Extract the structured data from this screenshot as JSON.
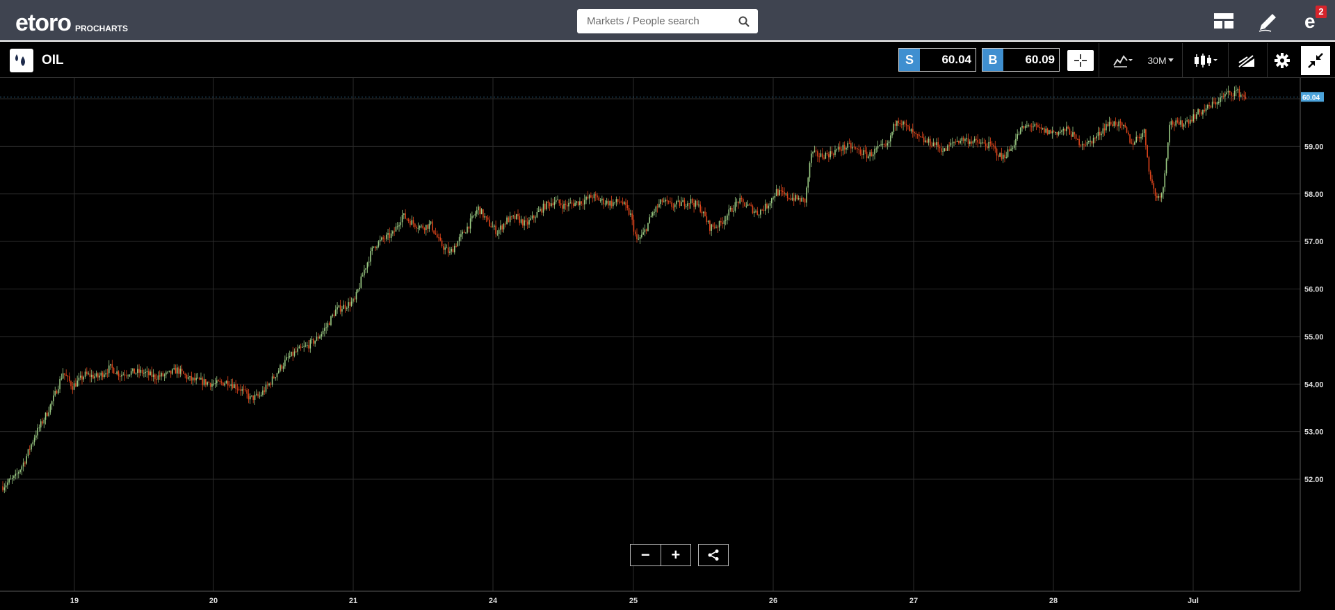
{
  "header": {
    "logo_text": "etoro",
    "logo_sub": "PROCHARTS",
    "search": {
      "placeholder": "Markets / People search"
    },
    "icons": [
      "layout-icon",
      "pencil-icon",
      "etoro-notifications-icon"
    ],
    "notification_count": "2"
  },
  "instrument": {
    "name": "OIL",
    "sell": {
      "label": "S",
      "value": "60.04"
    },
    "buy": {
      "label": "B",
      "value": "60.09"
    },
    "timeframe": "30M"
  },
  "colors": {
    "topbar": "#3f4450",
    "accent": "#3f8fd0",
    "up_candle": "#9ccc85",
    "down_candle": "#e0451b",
    "grid": "#2b2b2b",
    "price_tag": "#4ba3db"
  },
  "controls": {
    "zoom_out": "−",
    "zoom_in": "+"
  },
  "chart_data": {
    "type": "candlestick",
    "symbol": "OIL",
    "interval": "30M",
    "current_price": "60.04",
    "y_ticks": [
      "59.00",
      "58.00",
      "57.00",
      "56.00",
      "55.00",
      "54.00",
      "53.00",
      "52.00"
    ],
    "x_ticks": [
      "19",
      "20",
      "21",
      "24",
      "25",
      "26",
      "27",
      "28",
      "Jul"
    ],
    "ylim": [
      51.6,
      60.4
    ],
    "grid": true,
    "price_path": [
      [
        0,
        51.85
      ],
      [
        8,
        52.05
      ],
      [
        14,
        52.4
      ],
      [
        20,
        52.9
      ],
      [
        28,
        53.4
      ],
      [
        32,
        53.7
      ],
      [
        38,
        54.25
      ],
      [
        44,
        53.95
      ],
      [
        52,
        54.2
      ],
      [
        60,
        54.15
      ],
      [
        68,
        54.35
      ],
      [
        74,
        54.2
      ],
      [
        80,
        54.25
      ],
      [
        88,
        54.25
      ],
      [
        96,
        54.15
      ],
      [
        104,
        54.2
      ],
      [
        110,
        54.3
      ],
      [
        118,
        54.1
      ],
      [
        126,
        54.05
      ],
      [
        134,
        54.0
      ],
      [
        142,
        54.05
      ],
      [
        150,
        53.9
      ],
      [
        156,
        53.7
      ],
      [
        162,
        53.75
      ],
      [
        168,
        54.0
      ],
      [
        174,
        54.3
      ],
      [
        180,
        54.55
      ],
      [
        186,
        54.7
      ],
      [
        192,
        54.8
      ],
      [
        198,
        54.95
      ],
      [
        204,
        55.2
      ],
      [
        210,
        55.55
      ],
      [
        216,
        55.65
      ],
      [
        222,
        55.75
      ],
      [
        228,
        56.4
      ],
      [
        234,
        56.9
      ],
      [
        240,
        57.05
      ],
      [
        246,
        57.15
      ],
      [
        252,
        57.55
      ],
      [
        258,
        57.4
      ],
      [
        264,
        57.3
      ],
      [
        270,
        57.35
      ],
      [
        276,
        56.95
      ],
      [
        282,
        56.75
      ],
      [
        288,
        57.05
      ],
      [
        294,
        57.35
      ],
      [
        300,
        57.7
      ],
      [
        306,
        57.4
      ],
      [
        312,
        57.2
      ],
      [
        318,
        57.45
      ],
      [
        324,
        57.5
      ],
      [
        330,
        57.35
      ],
      [
        336,
        57.55
      ],
      [
        342,
        57.75
      ],
      [
        348,
        57.85
      ],
      [
        354,
        57.75
      ],
      [
        360,
        57.8
      ],
      [
        366,
        57.85
      ],
      [
        372,
        57.95
      ],
      [
        378,
        57.85
      ],
      [
        384,
        57.8
      ],
      [
        390,
        57.85
      ],
      [
        396,
        57.55
      ],
      [
        400,
        57.0
      ],
      [
        404,
        57.15
      ],
      [
        410,
        57.6
      ],
      [
        416,
        57.85
      ],
      [
        422,
        57.75
      ],
      [
        428,
        57.8
      ],
      [
        434,
        57.85
      ],
      [
        440,
        57.7
      ],
      [
        446,
        57.3
      ],
      [
        452,
        57.35
      ],
      [
        458,
        57.6
      ],
      [
        464,
        57.85
      ],
      [
        470,
        57.75
      ],
      [
        476,
        57.6
      ],
      [
        482,
        57.75
      ],
      [
        488,
        58.05
      ],
      [
        494,
        57.95
      ],
      [
        500,
        57.9
      ],
      [
        506,
        57.85
      ],
      [
        510,
        58.85
      ],
      [
        516,
        58.8
      ],
      [
        522,
        58.85
      ],
      [
        528,
        58.95
      ],
      [
        534,
        59.0
      ],
      [
        540,
        58.9
      ],
      [
        546,
        58.8
      ],
      [
        552,
        58.95
      ],
      [
        558,
        59.0
      ],
      [
        564,
        59.6
      ],
      [
        570,
        59.4
      ],
      [
        576,
        59.2
      ],
      [
        582,
        59.1
      ],
      [
        588,
        59.05
      ],
      [
        594,
        58.9
      ],
      [
        600,
        59.1
      ],
      [
        606,
        59.15
      ],
      [
        612,
        59.1
      ],
      [
        618,
        59.05
      ],
      [
        624,
        59.0
      ],
      [
        630,
        58.75
      ],
      [
        636,
        58.95
      ],
      [
        642,
        59.35
      ],
      [
        648,
        59.45
      ],
      [
        654,
        59.35
      ],
      [
        660,
        59.3
      ],
      [
        666,
        59.3
      ],
      [
        672,
        59.35
      ],
      [
        678,
        59.1
      ],
      [
        684,
        59.05
      ],
      [
        690,
        59.2
      ],
      [
        696,
        59.45
      ],
      [
        702,
        59.5
      ],
      [
        708,
        59.35
      ],
      [
        712,
        59.05
      ],
      [
        716,
        59.2
      ],
      [
        720,
        59.3
      ],
      [
        724,
        58.3
      ],
      [
        728,
        57.9
      ],
      [
        732,
        58.1
      ],
      [
        736,
        59.5
      ],
      [
        742,
        59.45
      ],
      [
        748,
        59.55
      ],
      [
        754,
        59.7
      ],
      [
        760,
        59.8
      ],
      [
        766,
        59.95
      ],
      [
        772,
        60.1
      ],
      [
        778,
        60.15
      ],
      [
        784,
        60.04
      ]
    ],
    "candle_count": 785
  }
}
